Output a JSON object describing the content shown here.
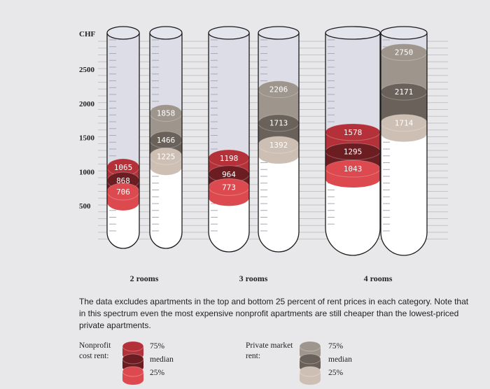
{
  "chart_data": {
    "type": "tube",
    "unit_label": "CHF",
    "y_ticks": [
      500,
      1000,
      1500,
      2000,
      2500
    ],
    "groups": [
      {
        "label": "2 rooms",
        "nonprofit": {
          "p25": 706,
          "median": 868,
          "p75": 1065
        },
        "private": {
          "p25": 1225,
          "median": 1466,
          "p75": 1858
        }
      },
      {
        "label": "3 rooms",
        "nonprofit": {
          "p25": 773,
          "median": 964,
          "p75": 1198
        },
        "private": {
          "p25": 1392,
          "median": 1713,
          "p75": 2206
        }
      },
      {
        "label": "4 rooms",
        "nonprofit": {
          "p25": 1043,
          "median": 1295,
          "p75": 1578
        },
        "private": {
          "p25": 1714,
          "median": 2171,
          "p75": 2750
        }
      }
    ],
    "colors": {
      "nonprofit": {
        "p75": "#b5313a",
        "median": "#6b1d21",
        "p25": "#dc4a4f"
      },
      "private": {
        "p75": "#9e958c",
        "median": "#6a625a",
        "p25": "#cdbfb3"
      }
    }
  },
  "note": "The data excludes apartments in the top and bottom 25 percent of rent prices in each category. Note that in this spectrum even the most expensive nonprofit apartments are still cheaper than the lowest-priced private apartments.",
  "legend": {
    "nonprofit_label": "Nonprofit cost rent:",
    "private_label": "Private market rent:",
    "p75": "75%",
    "median": "median",
    "p25": "25%"
  }
}
